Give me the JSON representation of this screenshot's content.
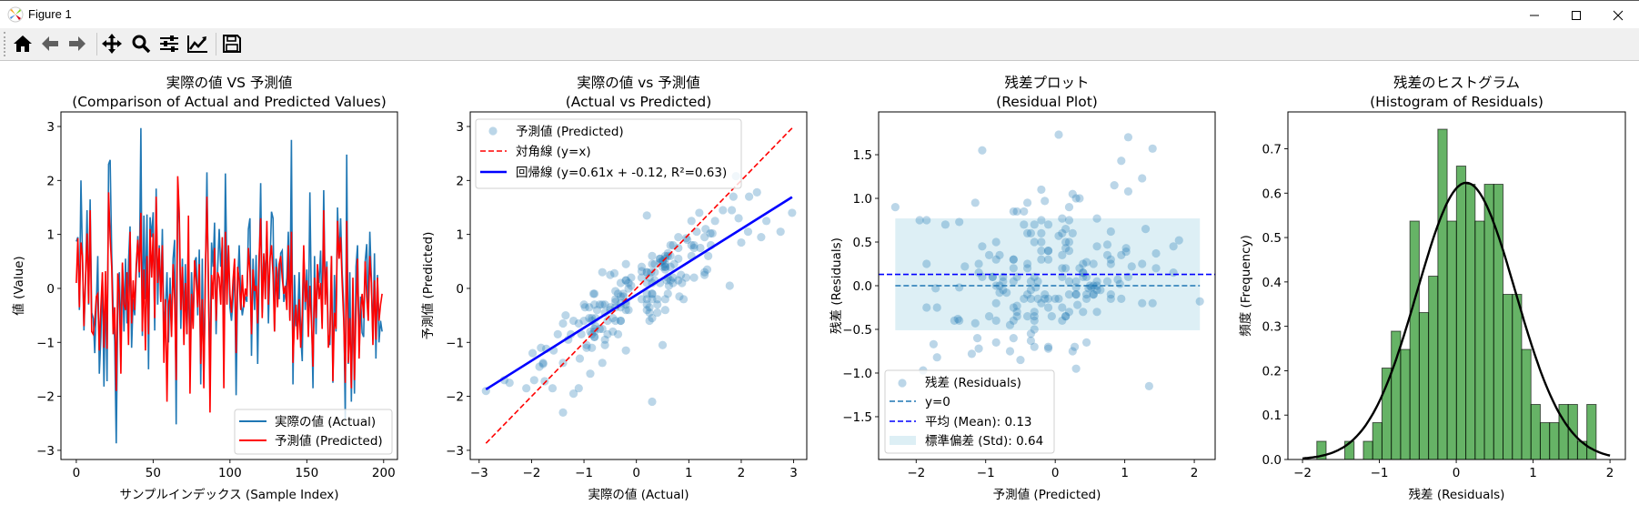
{
  "window": {
    "title": "Figure 1",
    "app_icon": "matplotlib-icon",
    "controls": [
      "minimize-icon",
      "maximize-icon",
      "close-icon"
    ]
  },
  "toolbar": {
    "buttons": [
      {
        "id": "home",
        "icon": "home-icon"
      },
      {
        "id": "back",
        "icon": "arrow-left-icon"
      },
      {
        "id": "forward",
        "icon": "arrow-right-icon"
      },
      {
        "id": "pan",
        "icon": "move-icon"
      },
      {
        "id": "zoom",
        "icon": "magnifier-icon"
      },
      {
        "id": "subplots",
        "icon": "sliders-icon"
      },
      {
        "id": "edit",
        "icon": "line-chart-icon"
      },
      {
        "id": "save",
        "icon": "floppy-disk-icon"
      }
    ]
  },
  "colors": {
    "actual": "#1f77b4",
    "predicted": "#ff0000",
    "regression": "#0000ff",
    "hist_bar": "#66b366",
    "std_band": "#add8e6"
  },
  "chart_data": [
    {
      "type": "line",
      "title_line1": "実際の値 VS 予測値",
      "title_line2": "(Comparison of Actual and Predicted Values)",
      "xlabel": "サンプルインデックス (Sample Index)",
      "ylabel": "値 (Value)",
      "xlim": [
        -10,
        209
      ],
      "ylim": [
        -3.17,
        3.27
      ],
      "xticks": [
        0,
        50,
        100,
        150,
        200
      ],
      "xtick_labels": [
        "0",
        "50",
        "100",
        "150",
        "200"
      ],
      "yticks": [
        -3,
        -2,
        -1,
        0,
        1,
        2,
        3
      ],
      "ytick_labels": [
        "−3",
        "−2",
        "−1",
        "0",
        "1",
        "2",
        "3"
      ],
      "legend": "lower right",
      "series": [
        {
          "name": "実際の値 (Actual)",
          "color": "#1f77b4",
          "values": [
            0.87,
            0.95,
            -0.4,
            2.0,
            0.55,
            -0.78,
            0.1,
            1.45,
            -0.3,
            1.65,
            -0.45,
            -0.55,
            -1.2,
            -0.3,
            0.6,
            -1.58,
            -0.9,
            0.28,
            -1.82,
            0.1,
            -1.72,
            2.3,
            2.38,
            0.65,
            -0.35,
            -0.98,
            -2.87,
            -0.42,
            0.3,
            -0.88,
            0.45,
            -0.8,
            0.55,
            -0.65,
            0.5,
            1.15,
            -1.1,
            -0.2,
            -0.5,
            0.3,
            0.97,
            0.2,
            2.97,
            -0.88,
            1.35,
            -0.2,
            1.37,
            -1.5,
            1.32,
            0.95,
            1.41,
            -0.78,
            1.85,
            -0.3,
            0.8,
            -0.2,
            1.1,
            -0.65,
            -0.4,
            0.3,
            -1.0,
            0.2,
            -0.8,
            0.55,
            0.9,
            -2.52,
            1.9,
            1.2,
            -0.75,
            0.55,
            -0.6,
            0.45,
            -0.85,
            0.2,
            -1.2,
            0.3,
            -0.7,
            0.5,
            0.58,
            -0.5,
            0.72,
            -1.78,
            0.55,
            -1.6,
            0.2,
            2.15,
            -0.15,
            -1.4,
            0.85,
            0.4,
            1.22,
            -0.85,
            0.35,
            1.1,
            0.4,
            0.8,
            -1.1,
            2.13,
            0.2,
            0.65,
            -0.35,
            -0.6,
            -0.2,
            0.45,
            -1.98,
            0.1,
            0.8,
            -0.2,
            -0.5,
            -0.3,
            -0.15,
            -0.25,
            1.1,
            1.3,
            -1.25,
            0.55,
            -0.4,
            0.62,
            -1.4,
            0.3,
            1.95,
            -0.45,
            0.6,
            0.2,
            1.05,
            -0.65,
            0.45,
            1.42,
            1.3,
            -0.8,
            0.55,
            0.25,
            -0.2,
            0.65,
            0.7,
            -0.25,
            -0.1,
            0.2,
            1.05,
            -0.55,
            2.75,
            -1.78,
            0.25,
            -0.7,
            -0.6,
            0.3,
            -0.85,
            -1.35,
            0.7,
            -0.4,
            0.35,
            -0.8,
            1.78,
            -0.3,
            -1.85,
            0.6,
            -0.85,
            0.35,
            0.1,
            0.7,
            -0.65,
            1.82,
            -0.2,
            0.5,
            -0.95,
            -1.05,
            0.6,
            -1.75,
            0.25,
            -0.8,
            1.5,
            0.55,
            1.3,
            0.3,
            -0.3,
            -2.42,
            2.48,
            -1.4,
            0.3,
            -2.1,
            -0.1,
            -1.95,
            0.4,
            0.8,
            -1.08,
            -0.15,
            -0.82,
            -0.9,
            0.5,
            0.82,
            -0.4,
            1.05,
            0.2,
            -0.95,
            0.65,
            -1.3,
            0.25,
            -1.0,
            -0.6,
            -0.8
          ]
        },
        {
          "name": "予測値 (Predicted)",
          "color": "#ff0000",
          "values": [
            0.1,
            0.93,
            -0.35,
            0.85,
            0.6,
            -0.7,
            0.2,
            1.02,
            -0.28,
            1.45,
            -0.8,
            -0.85,
            -0.6,
            -0.15,
            -0.1,
            -1.15,
            -0.35,
            0.3,
            -1.1,
            0.32,
            -1.12,
            1.78,
            0.95,
            0.4,
            -0.85,
            -0.35,
            -1.9,
            0.28,
            -0.1,
            -1.58,
            0.48,
            -0.3,
            -0.4,
            0.3,
            -1.05,
            1.05,
            -0.65,
            0.15,
            -0.4,
            0.45,
            0.9,
            0.3,
            1.4,
            -0.8,
            0.35,
            -1.15,
            0.6,
            -0.85,
            1.1,
            0.2,
            1.02,
            -0.55,
            1.7,
            0.1,
            0.75,
            -0.25,
            0.8,
            -1.38,
            -0.2,
            -2.1,
            -0.3,
            -0.1,
            -0.9,
            0.45,
            -0.2,
            -1.7,
            2.08,
            1.4,
            -0.4,
            0.4,
            -1.05,
            0.1,
            -0.85,
            1.35,
            -1.95,
            -0.1,
            -0.75,
            0.52,
            0.15,
            -0.35,
            0.45,
            -1.4,
            -0.2,
            -1.85,
            0.3,
            1.7,
            0.1,
            -2.3,
            0.25,
            -0.2,
            0.75,
            -0.6,
            0.3,
            0.2,
            -0.3,
            0.95,
            -1.85,
            1.05,
            -0.3,
            0.8,
            -0.1,
            -0.45,
            0.15,
            0.55,
            -1.2,
            0.4,
            0.15,
            -0.4,
            0.25,
            -0.35,
            0.0,
            -0.15,
            0.75,
            0.3,
            -0.85,
            0.35,
            -0.05,
            0.05,
            -0.65,
            0.6,
            1.3,
            -0.55,
            0.65,
            -0.2,
            1.25,
            -0.3,
            0.55,
            0.8,
            0.25,
            -0.8,
            0.4,
            -0.35,
            0.45,
            0.6,
            0.2,
            -0.1,
            0.05,
            -0.4,
            0.8,
            -0.6,
            1.05,
            -1.38,
            -0.6,
            -0.3,
            -0.95,
            -0.2,
            -1.1,
            -0.5,
            0.8,
            -0.25,
            0.15,
            -0.9,
            0.05,
            -0.6,
            -1.45,
            0.2,
            -0.55,
            0.45,
            -0.2,
            0.1,
            -0.75,
            1.45,
            -0.3,
            0.4,
            -1.1,
            -0.85,
            0.6,
            -1.72,
            -0.45,
            -0.75,
            1.25,
            0.55,
            0.95,
            0.1,
            -0.6,
            -1.75,
            1.25,
            -1.38,
            -0.55,
            -1.85,
            0.2,
            -1.7,
            -0.45,
            0.55,
            -1.3,
            -0.4,
            -0.1,
            -0.55,
            0.5,
            -0.15,
            -0.6,
            0.6,
            0.1,
            -1.05,
            0.15,
            -0.95,
            0.2,
            -0.6,
            -0.3,
            -0.1
          ]
        }
      ]
    },
    {
      "type": "scatter",
      "title_line1": "実際の値 vs 予測値",
      "title_line2": "(Actual vs Predicted)",
      "xlabel": "実際の値 (Actual)",
      "ylabel": "予測値 (Predicted)",
      "xlim": [
        -3.17,
        3.25
      ],
      "ylim": [
        -3.17,
        3.27
      ],
      "xticks": [
        -3,
        -2,
        -1,
        0,
        1,
        2,
        3
      ],
      "xtick_labels": [
        "−3",
        "−2",
        "−1",
        "0",
        "1",
        "2",
        "3"
      ],
      "yticks": [
        -3,
        -2,
        -1,
        0,
        1,
        2,
        3
      ],
      "ytick_labels": [
        "−3",
        "−2",
        "−1",
        "0",
        "1",
        "2",
        "3"
      ],
      "legend": "upper left",
      "points_label": "予測値 (Predicted)",
      "diagonal_label": "対角線 (y=x)",
      "regression_label": "回帰線 (y=0.61x + -0.12, R²=0.63)",
      "regression": {
        "slope": 0.61,
        "intercept": -0.12,
        "r2": 0.63
      }
    },
    {
      "type": "scatter",
      "title_line1": "残差プロット",
      "title_line2": "(Residual Plot)",
      "xlabel": "予測値 (Predicted)",
      "ylabel": "残差 (Residuals)",
      "xlim": [
        -2.54,
        2.3
      ],
      "ylim": [
        -1.99,
        1.99
      ],
      "xticks": [
        -2,
        -1,
        0,
        1,
        2
      ],
      "xtick_labels": [
        "−2",
        "−1",
        "0",
        "1",
        "2"
      ],
      "yticks": [
        -1.5,
        -1.0,
        -0.5,
        0.0,
        0.5,
        1.0,
        1.5
      ],
      "ytick_labels": [
        "−1.5",
        "−1.0",
        "−0.5",
        "0.0",
        "0.5",
        "1.0",
        "1.5"
      ],
      "legend": "lower left",
      "points_label": "残差 (Residuals)",
      "zero_label": "y=0",
      "mean_label": "平均 (Mean): 0.13",
      "std_label": "標準偏差 (Std): 0.64",
      "mean": 0.13,
      "std": 0.64
    },
    {
      "type": "bar",
      "title_line1": "残差のヒストグラム",
      "title_line2": "(Histogram of Residuals)",
      "xlabel": "残差 (Residuals)",
      "ylabel": "頻度 (Frequency)",
      "xlim": [
        -2.19,
        2.2
      ],
      "ylim": [
        0,
        0.783
      ],
      "xticks": [
        -2,
        -1,
        0,
        1,
        2
      ],
      "xtick_labels": [
        "−2",
        "−1",
        "0",
        "1",
        "2"
      ],
      "yticks": [
        0,
        0.1,
        0.2,
        0.3,
        0.4,
        0.5,
        0.6,
        0.7
      ],
      "ytick_labels": [
        "0.0",
        "0.1",
        "0.2",
        "0.3",
        "0.4",
        "0.5",
        "0.6",
        "0.7"
      ],
      "bin_range": [
        -1.814,
        1.82
      ],
      "density": [
        0.041,
        0,
        0,
        0.041,
        0,
        0.041,
        0.083,
        0.206,
        0.289,
        0.248,
        0.537,
        0.331,
        0.413,
        0.744,
        0.537,
        0.661,
        0.62,
        0.537,
        0.62,
        0.62,
        0.372,
        0.372,
        0.248,
        0.124,
        0.083,
        0.083,
        0.124,
        0.124,
        0.041,
        0.124
      ],
      "normal_curve": {
        "mean": 0.13,
        "std": 0.64,
        "x_range": [
          -2,
          2
        ]
      }
    }
  ]
}
